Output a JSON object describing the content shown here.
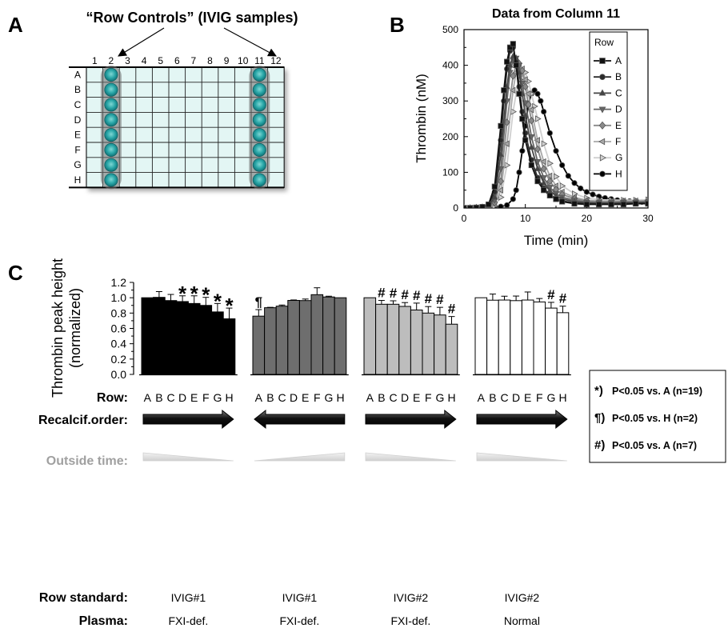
{
  "panels": {
    "a": {
      "letter": "A",
      "title": "“Row Controls” (IVIG samples)",
      "columns": [
        "1",
        "2",
        "3",
        "4",
        "5",
        "6",
        "7",
        "8",
        "9",
        "10",
        "11",
        "12"
      ],
      "rows": [
        "A",
        "B",
        "C",
        "D",
        "E",
        "F",
        "G",
        "H"
      ],
      "highlight_columns": [
        "2",
        "11"
      ],
      "colors": {
        "well_fill": "#e3f6f4",
        "control_well": "#2aa7a8",
        "control_halo": "#6b6b6b"
      }
    },
    "b": {
      "letter": "B",
      "title": "Data from Column 11",
      "legend_title": "Row"
    },
    "c": {
      "letter": "C",
      "legend": [
        {
          "symbol": "*)",
          "text": "P<0.05 vs. A (n=19)"
        },
        {
          "symbol": "¶)",
          "text": "P<0.05 vs. H (n=2)"
        },
        {
          "symbol": "#)",
          "text": "P<0.05 vs. A (n=7)"
        }
      ],
      "row_headers": {
        "row": "Row:",
        "recalcif": "Recalcif.order:",
        "outside": "Outside time:",
        "standard": "Row standard:",
        "plasma": "Plasma:"
      },
      "groups": [
        {
          "arrow": "right",
          "ramp": "decreasing",
          "standard": "IVIG#1",
          "plasma": "FXI-def."
        },
        {
          "arrow": "left",
          "ramp": "increasing",
          "standard": "IVIG#1",
          "plasma": "FXI-def."
        },
        {
          "arrow": "right",
          "ramp": "decreasing",
          "standard": "IVIG#2",
          "plasma": "FXI-def."
        },
        {
          "arrow": "right",
          "ramp": "decreasing",
          "standard": "IVIG#2",
          "plasma": "Normal"
        }
      ]
    }
  },
  "chart_data": [
    {
      "type": "line",
      "title": "Data from Column 11",
      "xlabel": "Time (min)",
      "ylabel": "Thrombin (nM)",
      "xlim": [
        0,
        30
      ],
      "ylim": [
        0,
        500
      ],
      "xticks": [
        0,
        10,
        20,
        30
      ],
      "yticks": [
        0,
        100,
        200,
        300,
        400,
        500
      ],
      "legend_title": "Row",
      "legend_position": "top-right",
      "series": [
        {
          "name": "A",
          "marker": "square",
          "color": "#111111",
          "x": [
            0,
            1,
            2,
            3,
            4,
            5,
            6,
            6.5,
            7,
            7.5,
            8,
            8.5,
            9,
            9.5,
            10,
            11,
            12,
            13,
            14,
            15,
            16,
            18,
            20,
            22,
            24,
            26,
            28,
            30
          ],
          "y": [
            0,
            0,
            1,
            3,
            10,
            60,
            230,
            330,
            410,
            450,
            460,
            400,
            320,
            250,
            190,
            120,
            75,
            50,
            35,
            25,
            18,
            12,
            10,
            10,
            10,
            10,
            12,
            12
          ]
        },
        {
          "name": "B",
          "marker": "circle",
          "color": "#2b2b2b",
          "x": [
            0,
            1,
            2,
            3,
            4,
            5,
            6,
            6.5,
            7,
            7.5,
            8,
            8.5,
            9,
            9.5,
            10,
            11,
            12,
            13,
            14,
            15,
            16,
            18,
            20,
            22,
            24,
            26,
            28,
            30
          ],
          "y": [
            0,
            0,
            1,
            3,
            8,
            45,
            190,
            300,
            390,
            440,
            450,
            410,
            340,
            270,
            210,
            135,
            85,
            55,
            38,
            27,
            20,
            14,
            12,
            11,
            11,
            12,
            13,
            13
          ]
        },
        {
          "name": "C",
          "marker": "triangle-up",
          "color": "#444444",
          "x": [
            0,
            1,
            2,
            3,
            4,
            5,
            6,
            7,
            7.5,
            8,
            8.5,
            9,
            9.5,
            10,
            11,
            12,
            13,
            14,
            15,
            16,
            18,
            20,
            22,
            24,
            26,
            28,
            30
          ],
          "y": [
            0,
            0,
            1,
            2,
            6,
            30,
            150,
            340,
            400,
            425,
            420,
            380,
            320,
            260,
            170,
            110,
            70,
            48,
            34,
            25,
            18,
            14,
            13,
            13,
            14,
            14,
            15
          ]
        },
        {
          "name": "D",
          "marker": "triangle-down",
          "color": "#666666",
          "x": [
            0,
            1,
            2,
            3,
            4,
            5,
            6,
            7,
            7.5,
            8,
            8.5,
            9,
            9.5,
            10,
            11,
            12,
            13,
            14,
            15,
            16,
            18,
            20,
            22,
            24,
            26,
            28,
            30
          ],
          "y": [
            0,
            0,
            1,
            2,
            5,
            22,
            110,
            300,
            380,
            415,
            420,
            400,
            350,
            295,
            200,
            130,
            85,
            58,
            40,
            30,
            22,
            16,
            15,
            15,
            16,
            16,
            17
          ]
        },
        {
          "name": "E",
          "marker": "diamond",
          "color": "#8a8a8a",
          "x": [
            0,
            1,
            2,
            3,
            4,
            5,
            6,
            7,
            8,
            8.5,
            9,
            9.5,
            10,
            10.5,
            11,
            12,
            13,
            14,
            15,
            16,
            18,
            20,
            22,
            24,
            26,
            28,
            30
          ],
          "y": [
            0,
            0,
            1,
            2,
            4,
            15,
            75,
            240,
            370,
            400,
            405,
            385,
            340,
            290,
            245,
            165,
            110,
            75,
            52,
            38,
            26,
            19,
            17,
            17,
            18,
            18,
            19
          ]
        },
        {
          "name": "F",
          "marker": "triangle-left",
          "color": "#a8a8a8",
          "x": [
            0,
            1,
            2,
            3,
            4,
            5,
            6,
            7,
            8,
            8.5,
            9,
            9.5,
            10,
            10.5,
            11,
            12,
            13,
            14,
            15,
            16,
            18,
            20,
            22,
            24,
            26,
            28,
            30
          ],
          "y": [
            0,
            0,
            1,
            2,
            3,
            10,
            50,
            180,
            330,
            380,
            395,
            390,
            360,
            320,
            275,
            190,
            130,
            90,
            62,
            45,
            30,
            22,
            19,
            19,
            20,
            20,
            21
          ]
        },
        {
          "name": "G",
          "marker": "triangle-right",
          "color": "#cfcfcf",
          "x": [
            0,
            1,
            2,
            3,
            4,
            5,
            6,
            7,
            8,
            9,
            9.5,
            10,
            10.5,
            11,
            11.5,
            12,
            13,
            14,
            15,
            16,
            18,
            20,
            22,
            24,
            26,
            28,
            30
          ],
          "y": [
            0,
            0,
            1,
            1,
            2,
            6,
            30,
            120,
            270,
            370,
            385,
            380,
            355,
            320,
            285,
            250,
            180,
            125,
            88,
            62,
            40,
            28,
            23,
            22,
            22,
            22,
            23
          ]
        },
        {
          "name": "H",
          "marker": "circle",
          "color": "#000000",
          "x": [
            0,
            1,
            2,
            3,
            4,
            5,
            6,
            7,
            8,
            8.5,
            9,
            9.5,
            10,
            10.5,
            11,
            11.5,
            12,
            12.5,
            13,
            14,
            15,
            16,
            17,
            18,
            19,
            20,
            21,
            22,
            23,
            24,
            25,
            26,
            27,
            28,
            29,
            30
          ],
          "y": [
            0,
            0,
            0,
            1,
            1,
            2,
            4,
            8,
            25,
            50,
            100,
            160,
            230,
            290,
            320,
            330,
            320,
            300,
            270,
            210,
            160,
            120,
            90,
            70,
            55,
            45,
            38,
            32,
            28,
            25,
            22,
            20,
            19,
            18,
            17,
            17
          ]
        }
      ]
    },
    {
      "type": "bar",
      "title": "",
      "xlabel": "Row:",
      "ylabel": "Thrombin peak height (normalized)",
      "ylim": [
        0,
        1.2
      ],
      "yticks": [
        0.0,
        0.2,
        0.4,
        0.6,
        0.8,
        1.0,
        1.2
      ],
      "categories": [
        "A",
        "B",
        "C",
        "D",
        "E",
        "F",
        "G",
        "H"
      ],
      "groups": [
        {
          "color": "#000000",
          "values": [
            1.0,
            1.005,
            0.963,
            0.95,
            0.925,
            0.9,
            0.815,
            0.725
          ],
          "errors": [
            0,
            0.075,
            0.08,
            0.075,
            0.1,
            0.105,
            0.11,
            0.14
          ],
          "annotations": [
            "",
            "",
            "",
            "*",
            "*",
            "*",
            "*",
            "*"
          ]
        },
        {
          "color": "#6e6e6e",
          "values": [
            0.76,
            0.87,
            0.89,
            0.965,
            0.963,
            1.04,
            1.01,
            1.0
          ],
          "errors": [
            0.085,
            0.005,
            0.015,
            0.006,
            0.02,
            0.09,
            0.01,
            0
          ],
          "annotations": [
            "¶",
            "",
            "",
            "",
            "",
            "",
            "",
            ""
          ]
        },
        {
          "color": "#bdbdbd",
          "values": [
            1.0,
            0.915,
            0.915,
            0.887,
            0.84,
            0.8,
            0.775,
            0.655
          ],
          "errors": [
            0,
            0.05,
            0.045,
            0.05,
            0.09,
            0.085,
            0.1,
            0.1
          ],
          "annotations": [
            "",
            "#",
            "#",
            "#",
            "#",
            "#",
            "#",
            "#"
          ]
        },
        {
          "color": "#ffffff",
          "values": [
            1.0,
            0.968,
            0.97,
            0.962,
            0.97,
            0.945,
            0.865,
            0.805
          ],
          "errors": [
            0,
            0.08,
            0.05,
            0.06,
            0.105,
            0.045,
            0.075,
            0.085
          ],
          "annotations": [
            "",
            "",
            "",
            "",
            "",
            "",
            "#",
            "#"
          ]
        }
      ]
    }
  ]
}
